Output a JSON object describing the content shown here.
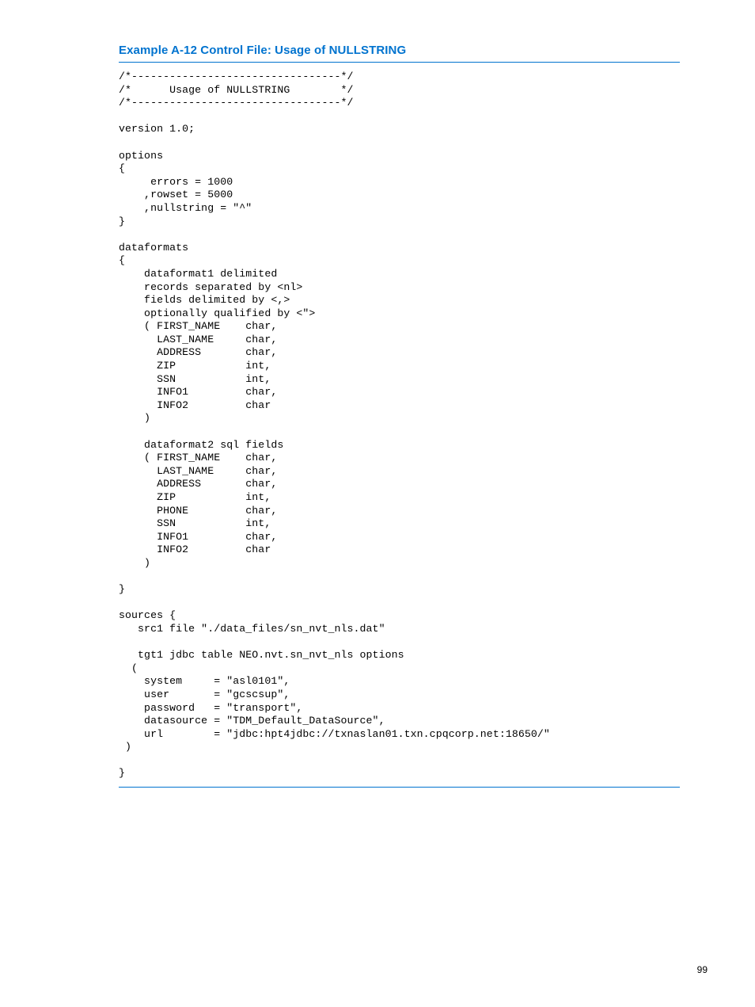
{
  "title": "Example A-12 Control File: Usage of NULLSTRING",
  "pagenum": "99",
  "code": "/*---------------------------------*/\n/*      Usage of NULLSTRING        */\n/*---------------------------------*/\n\nversion 1.0;\n\noptions\n{\n     errors = 1000\n    ,rowset = 5000\n    ,nullstring = \"^\"\n}\n\ndataformats\n{\n    dataformat1 delimited\n    records separated by <nl>\n    fields delimited by <,>\n    optionally qualified by <\">\n    ( FIRST_NAME    char,\n      LAST_NAME     char,\n      ADDRESS       char,\n      ZIP           int,\n      SSN           int,\n      INFO1         char,\n      INFO2         char\n    )\n\n    dataformat2 sql fields\n    ( FIRST_NAME    char,\n      LAST_NAME     char,\n      ADDRESS       char,\n      ZIP           int,\n      PHONE         char,\n      SSN           int,\n      INFO1         char,\n      INFO2         char\n    )\n\n}\n\nsources {\n   src1 file \"./data_files/sn_nvt_nls.dat\"\n\n   tgt1 jdbc table NEO.nvt.sn_nvt_nls options\n  (\n    system     = \"asl0101\",\n    user       = \"gcscsup\",\n    password   = \"transport\",\n    datasource = \"TDM_Default_DataSource\",\n    url        = \"jdbc:hpt4jdbc://txnaslan01.txn.cpqcorp.net:18650/\"\n )\n\n}"
}
